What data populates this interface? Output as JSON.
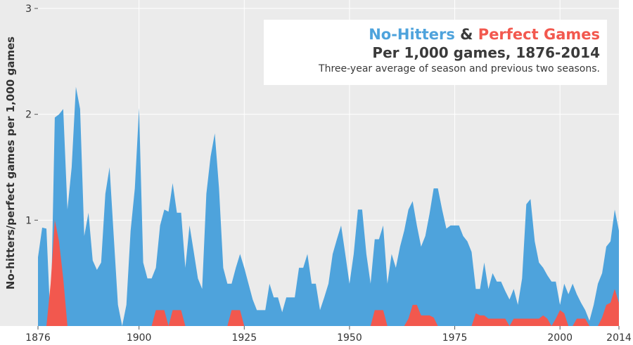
{
  "colors": {
    "no_hitters": "#4ea3dc",
    "perfect_games": "#f2584e",
    "background": "#ebebeb",
    "grid": "#ffffff",
    "text": "#333333"
  },
  "chart_data": {
    "type": "area",
    "title_part1": "No-Hitters",
    "title_and": " & ",
    "title_part2": "Perfect Games",
    "subtitle": "Per 1,000 games, 1876-2014",
    "note": "Three-year average of season and previous two seasons.",
    "ylabel": "No-hitters/perfect games per 1,000 games",
    "xlabel": "",
    "xlim": [
      1876,
      2014
    ],
    "ylim": [
      0,
      3
    ],
    "x_ticks": [
      "1876",
      "1900",
      "1925",
      "1950",
      "1975",
      "2000",
      "2014"
    ],
    "y_ticks": [
      "1",
      "2",
      "3"
    ],
    "grid": true,
    "series": [
      {
        "name": "No-Hitters",
        "points": [
          [
            1876,
            0.65
          ],
          [
            1877,
            0.93
          ],
          [
            1878,
            0.92
          ],
          [
            1879,
            0.0
          ],
          [
            1880,
            1.97
          ],
          [
            1881,
            2.0
          ],
          [
            1882,
            2.05
          ],
          [
            1883,
            1.1
          ],
          [
            1884,
            1.5
          ],
          [
            1885,
            2.26
          ],
          [
            1886,
            2.05
          ],
          [
            1887,
            0.85
          ],
          [
            1888,
            1.07
          ],
          [
            1889,
            0.62
          ],
          [
            1890,
            0.53
          ],
          [
            1891,
            0.6
          ],
          [
            1892,
            1.25
          ],
          [
            1893,
            1.5
          ],
          [
            1894,
            0.85
          ],
          [
            1895,
            0.2
          ],
          [
            1896,
            0.0
          ],
          [
            1897,
            0.2
          ],
          [
            1898,
            0.9
          ],
          [
            1899,
            1.3
          ],
          [
            1900,
            2.06
          ],
          [
            1901,
            0.6
          ],
          [
            1902,
            0.45
          ],
          [
            1903,
            0.45
          ],
          [
            1904,
            0.55
          ],
          [
            1905,
            0.95
          ],
          [
            1906,
            1.1
          ],
          [
            1907,
            1.08
          ],
          [
            1908,
            1.35
          ],
          [
            1909,
            1.07
          ],
          [
            1910,
            1.07
          ],
          [
            1911,
            0.55
          ],
          [
            1912,
            0.95
          ],
          [
            1913,
            0.7
          ],
          [
            1914,
            0.45
          ],
          [
            1915,
            0.35
          ],
          [
            1916,
            1.25
          ],
          [
            1917,
            1.6
          ],
          [
            1918,
            1.82
          ],
          [
            1919,
            1.3
          ],
          [
            1920,
            0.55
          ],
          [
            1921,
            0.4
          ],
          [
            1922,
            0.4
          ],
          [
            1923,
            0.55
          ],
          [
            1924,
            0.68
          ],
          [
            1925,
            0.55
          ],
          [
            1926,
            0.4
          ],
          [
            1927,
            0.25
          ],
          [
            1928,
            0.15
          ],
          [
            1929,
            0.15
          ],
          [
            1930,
            0.15
          ],
          [
            1931,
            0.4
          ],
          [
            1932,
            0.27
          ],
          [
            1933,
            0.27
          ],
          [
            1934,
            0.13
          ],
          [
            1935,
            0.27
          ],
          [
            1936,
            0.27
          ],
          [
            1937,
            0.27
          ],
          [
            1938,
            0.55
          ],
          [
            1939,
            0.55
          ],
          [
            1940,
            0.68
          ],
          [
            1941,
            0.4
          ],
          [
            1942,
            0.4
          ],
          [
            1943,
            0.15
          ],
          [
            1944,
            0.27
          ],
          [
            1945,
            0.4
          ],
          [
            1946,
            0.68
          ],
          [
            1947,
            0.82
          ],
          [
            1948,
            0.95
          ],
          [
            1949,
            0.68
          ],
          [
            1950,
            0.4
          ],
          [
            1951,
            0.68
          ],
          [
            1952,
            1.1
          ],
          [
            1953,
            1.1
          ],
          [
            1954,
            0.68
          ],
          [
            1955,
            0.4
          ],
          [
            1956,
            0.82
          ],
          [
            1957,
            0.82
          ],
          [
            1958,
            0.95
          ],
          [
            1959,
            0.4
          ],
          [
            1960,
            0.68
          ],
          [
            1961,
            0.55
          ],
          [
            1962,
            0.75
          ],
          [
            1963,
            0.9
          ],
          [
            1964,
            1.1
          ],
          [
            1965,
            1.18
          ],
          [
            1966,
            0.95
          ],
          [
            1967,
            0.75
          ],
          [
            1968,
            0.85
          ],
          [
            1969,
            1.06
          ],
          [
            1970,
            1.3
          ],
          [
            1971,
            1.3
          ],
          [
            1972,
            1.1
          ],
          [
            1973,
            0.92
          ],
          [
            1974,
            0.95
          ],
          [
            1975,
            0.95
          ],
          [
            1976,
            0.95
          ],
          [
            1977,
            0.85
          ],
          [
            1978,
            0.8
          ],
          [
            1979,
            0.7
          ],
          [
            1980,
            0.35
          ],
          [
            1981,
            0.35
          ],
          [
            1982,
            0.6
          ],
          [
            1983,
            0.35
          ],
          [
            1984,
            0.5
          ],
          [
            1985,
            0.42
          ],
          [
            1986,
            0.42
          ],
          [
            1987,
            0.33
          ],
          [
            1988,
            0.25
          ],
          [
            1989,
            0.35
          ],
          [
            1990,
            0.2
          ],
          [
            1991,
            0.45
          ],
          [
            1992,
            1.15
          ],
          [
            1993,
            1.2
          ],
          [
            1994,
            0.8
          ],
          [
            1995,
            0.6
          ],
          [
            1996,
            0.55
          ],
          [
            1997,
            0.48
          ],
          [
            1998,
            0.42
          ],
          [
            1999,
            0.42
          ],
          [
            2000,
            0.2
          ],
          [
            2001,
            0.4
          ],
          [
            2002,
            0.3
          ],
          [
            2003,
            0.4
          ],
          [
            2004,
            0.3
          ],
          [
            2005,
            0.22
          ],
          [
            2006,
            0.15
          ],
          [
            2007,
            0.05
          ],
          [
            2008,
            0.2
          ],
          [
            2009,
            0.4
          ],
          [
            2010,
            0.5
          ],
          [
            2011,
            0.75
          ],
          [
            2012,
            0.8
          ],
          [
            2013,
            1.1
          ],
          [
            2014,
            0.9
          ],
          [
            2014.5,
            1.85
          ]
        ]
      },
      {
        "name": "Perfect Games",
        "points": [
          [
            1876,
            0
          ],
          [
            1878,
            0
          ],
          [
            1879,
            0.4
          ],
          [
            1880,
            1.0
          ],
          [
            1881,
            0.8
          ],
          [
            1882,
            0.45
          ],
          [
            1883,
            0
          ],
          [
            1903,
            0
          ],
          [
            1904,
            0.15
          ],
          [
            1905,
            0.15
          ],
          [
            1906,
            0.15
          ],
          [
            1907,
            0
          ],
          [
            1908,
            0.15
          ],
          [
            1909,
            0.15
          ],
          [
            1910,
            0.15
          ],
          [
            1911,
            0
          ],
          [
            1921,
            0
          ],
          [
            1922,
            0.15
          ],
          [
            1923,
            0.15
          ],
          [
            1924,
            0.15
          ],
          [
            1925,
            0
          ],
          [
            1955,
            0
          ],
          [
            1956,
            0.15
          ],
          [
            1957,
            0.15
          ],
          [
            1958,
            0.15
          ],
          [
            1959,
            0
          ],
          [
            1963,
            0
          ],
          [
            1964,
            0.07
          ],
          [
            1965,
            0.2
          ],
          [
            1966,
            0.2
          ],
          [
            1967,
            0.1
          ],
          [
            1968,
            0.1
          ],
          [
            1969,
            0.1
          ],
          [
            1970,
            0.08
          ],
          [
            1971,
            0
          ],
          [
            1979,
            0
          ],
          [
            1980,
            0.12
          ],
          [
            1981,
            0.1
          ],
          [
            1982,
            0.1
          ],
          [
            1983,
            0.07
          ],
          [
            1984,
            0.07
          ],
          [
            1985,
            0.07
          ],
          [
            1986,
            0.07
          ],
          [
            1987,
            0.07
          ],
          [
            1988,
            0.0
          ],
          [
            1989,
            0.07
          ],
          [
            1990,
            0.07
          ],
          [
            1991,
            0.07
          ],
          [
            1992,
            0.07
          ],
          [
            1993,
            0.07
          ],
          [
            1994,
            0.07
          ],
          [
            1995,
            0.07
          ],
          [
            1996,
            0.1
          ],
          [
            1997,
            0.07
          ],
          [
            1998,
            0.0
          ],
          [
            1999,
            0.07
          ],
          [
            2000,
            0.15
          ],
          [
            2001,
            0.12
          ],
          [
            2002,
            0.0
          ],
          [
            2003,
            0
          ],
          [
            2004,
            0.07
          ],
          [
            2005,
            0.07
          ],
          [
            2006,
            0.07
          ],
          [
            2007,
            0.0
          ],
          [
            2009,
            0
          ],
          [
            2010,
            0.08
          ],
          [
            2011,
            0.2
          ],
          [
            2012,
            0.22
          ],
          [
            2013,
            0.35
          ],
          [
            2014,
            0.22
          ],
          [
            2014.5,
            0.42
          ]
        ]
      }
    ]
  }
}
